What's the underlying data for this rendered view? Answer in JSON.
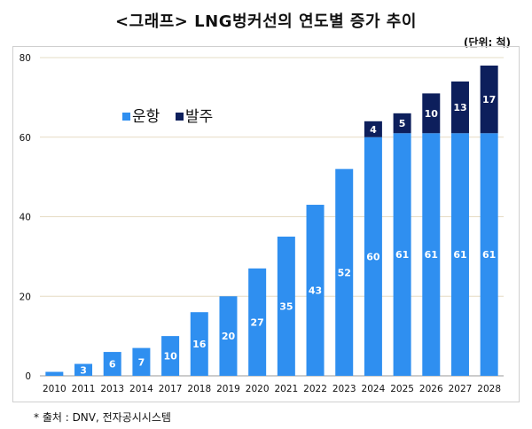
{
  "title": "<그래프> LNG벙커선의 연도별 증가 추이",
  "unit": "(단위: 척)",
  "source": "* 출처 : DNV, 전자공시시스템",
  "colors": {
    "operating": "#2f8ff0",
    "ordered": "#0d1f5c",
    "grid": "#e6dcc4"
  },
  "chart_data": {
    "type": "bar",
    "stacked": true,
    "categories": [
      "2010",
      "2011",
      "2013",
      "2014",
      "2017",
      "2018",
      "2019",
      "2020",
      "2021",
      "2022",
      "2023",
      "2024",
      "2025",
      "2026",
      "2027",
      "2028"
    ],
    "series": [
      {
        "name": "운항",
        "values": [
          1,
          3,
          6,
          7,
          10,
          16,
          20,
          27,
          35,
          43,
          52,
          60,
          61,
          61,
          61,
          61
        ],
        "labels": [
          "",
          "3",
          "6",
          "7",
          "10",
          "16",
          "20",
          "27",
          "35",
          "43",
          "52",
          "60",
          "61",
          "61",
          "61",
          "61"
        ]
      },
      {
        "name": "발주",
        "values": [
          0,
          0,
          0,
          0,
          0,
          0,
          0,
          0,
          0,
          0,
          0,
          4,
          5,
          10,
          13,
          17
        ],
        "labels": [
          "",
          "",
          "",
          "",
          "",
          "",
          "",
          "",
          "",
          "",
          "",
          "4",
          "5",
          "10",
          "13",
          "17"
        ]
      }
    ],
    "yticks": [
      0,
      20,
      40,
      60,
      80
    ],
    "ylim": [
      0,
      80
    ],
    "grid": true,
    "legend": "upper-left"
  }
}
